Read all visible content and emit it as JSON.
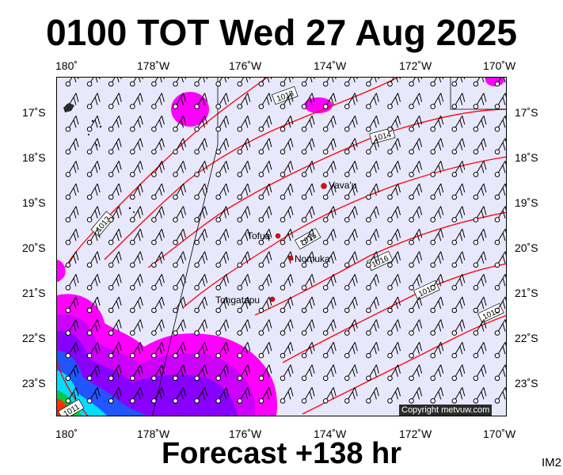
{
  "title": "0100 TOT Wed 27 Aug 2025",
  "subtitle": "Forecast +138 hr",
  "corner_label": "IM2",
  "copyright": "Copyright metvuw.com",
  "axes": {
    "lon_labels": [
      "180˚",
      "178˚W",
      "176˚W",
      "174˚W",
      "172˚W",
      "170˚W"
    ],
    "lat_labels": [
      "17˚S",
      "18˚S",
      "19˚S",
      "20˚S",
      "21˚S",
      "22˚S",
      "23˚S"
    ]
  },
  "places": [
    {
      "name": "Vava'u",
      "lon": -174.0,
      "lat": -18.65
    },
    {
      "name": "Tofua",
      "lon": -175.05,
      "lat": -19.75
    },
    {
      "name": "Nomuka",
      "lon": -174.8,
      "lat": -20.25
    },
    {
      "name": "Tongatapu",
      "lon": -175.2,
      "lat": -21.15
    }
  ],
  "isobars": [
    "1013",
    "1013",
    "1014",
    "1015",
    "1016",
    "1017",
    "1018",
    "1011"
  ],
  "colors": {
    "background": "#e8e8fd",
    "isobar": "#ff0000",
    "rain_magenta": "#ff00ff",
    "rain_purple": "#9900ff",
    "rain_blue": "#0044ff",
    "rain_cyan": "#00ffff",
    "rain_green": "#00cc44",
    "rain_red": "#ff2200"
  }
}
